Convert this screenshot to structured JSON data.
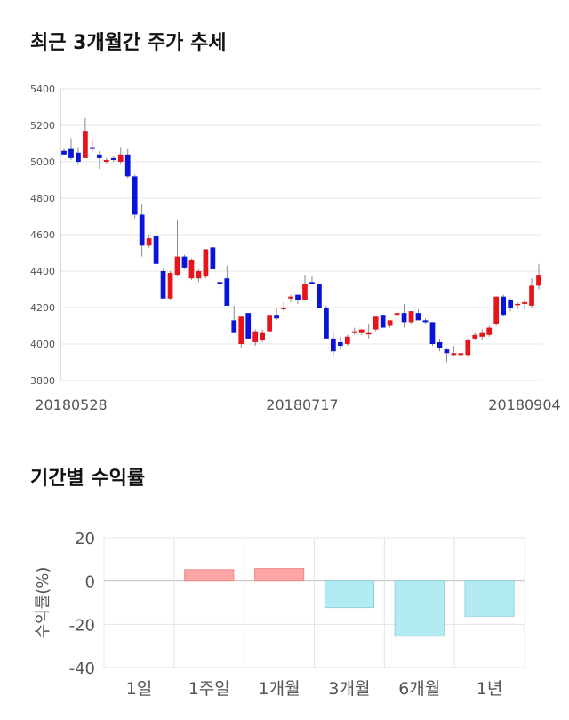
{
  "section1_title": "최근 3개월간 주가 추세",
  "section2_title": "기간별 수익률",
  "colors": {
    "up": "#e8141b",
    "down": "#0a14d8",
    "wick": "#888888",
    "grid": "#e4e4e4",
    "bar_positive": "#fca5a5",
    "bar_negative": "#b2ebf2",
    "bar_negative_stroke": "#8fd3e0"
  },
  "chart_data": [
    {
      "type": "candlestick",
      "ylim": [
        3800,
        5400
      ],
      "yticks": [
        "5400",
        "5200",
        "5000",
        "4800",
        "4600",
        "4400",
        "4200",
        "4000",
        "3800"
      ],
      "date_labels": [
        "20180528",
        "20180717",
        "20180904"
      ],
      "grid": true,
      "candles": [
        [
          5060,
          5070,
          5040,
          5040
        ],
        [
          5070,
          5130,
          5010,
          5020
        ],
        [
          5050,
          5080,
          4990,
          5000
        ],
        [
          5020,
          5240,
          5020,
          5170
        ],
        [
          5080,
          5120,
          5060,
          5070
        ],
        [
          5040,
          5060,
          4960,
          5020
        ],
        [
          5000,
          5020,
          4990,
          5010
        ],
        [
          5020,
          5030,
          5000,
          5010
        ],
        [
          5000,
          5080,
          4990,
          5040
        ],
        [
          5040,
          5070,
          4910,
          4920
        ],
        [
          4920,
          4930,
          4690,
          4710
        ],
        [
          4710,
          4770,
          4480,
          4540
        ],
        [
          4540,
          4600,
          4530,
          4580
        ],
        [
          4590,
          4650,
          4420,
          4440
        ],
        [
          4400,
          4410,
          4250,
          4250
        ],
        [
          4250,
          4400,
          4240,
          4390
        ],
        [
          4380,
          4680,
          4370,
          4480
        ],
        [
          4480,
          4490,
          4410,
          4420
        ],
        [
          4360,
          4470,
          4350,
          4460
        ],
        [
          4360,
          4410,
          4340,
          4400
        ],
        [
          4370,
          4520,
          4360,
          4520
        ],
        [
          4530,
          4530,
          4410,
          4410
        ],
        [
          4340,
          4360,
          4300,
          4330
        ],
        [
          4360,
          4430,
          4210,
          4210
        ],
        [
          4130,
          4210,
          4060,
          4060
        ],
        [
          4000,
          4150,
          3980,
          4150
        ],
        [
          4170,
          4170,
          4030,
          4030
        ],
        [
          4010,
          4080,
          3990,
          4070
        ],
        [
          4020,
          4080,
          4010,
          4060
        ],
        [
          4070,
          4160,
          4070,
          4160
        ],
        [
          4160,
          4200,
          4130,
          4140
        ],
        [
          4190,
          4230,
          4180,
          4200
        ],
        [
          4250,
          4270,
          4230,
          4260
        ],
        [
          4270,
          4270,
          4220,
          4240
        ],
        [
          4240,
          4380,
          4240,
          4330
        ],
        [
          4340,
          4370,
          4330,
          4330
        ],
        [
          4330,
          4330,
          4200,
          4200
        ],
        [
          4200,
          4210,
          4030,
          4030
        ],
        [
          4030,
          4060,
          3930,
          3960
        ],
        [
          4010,
          4040,
          3970,
          3990
        ],
        [
          4000,
          4050,
          3990,
          4040
        ],
        [
          4060,
          4090,
          4050,
          4070
        ],
        [
          4060,
          4080,
          4050,
          4080
        ],
        [
          4060,
          4110,
          4030,
          4060
        ],
        [
          4080,
          4150,
          4070,
          4150
        ],
        [
          4160,
          4160,
          4090,
          4090
        ],
        [
          4100,
          4130,
          4090,
          4130
        ],
        [
          4160,
          4180,
          4140,
          4170
        ],
        [
          4170,
          4220,
          4090,
          4120
        ],
        [
          4120,
          4180,
          4110,
          4180
        ],
        [
          4170,
          4190,
          4130,
          4130
        ],
        [
          4130,
          4140,
          4110,
          4120
        ],
        [
          4120,
          4120,
          3990,
          4000
        ],
        [
          4010,
          4030,
          3960,
          3980
        ],
        [
          3970,
          3980,
          3900,
          3950
        ],
        [
          3940,
          3990,
          3930,
          3950
        ],
        [
          3940,
          3950,
          3930,
          3950
        ],
        [
          3940,
          4030,
          3930,
          4020
        ],
        [
          4030,
          4060,
          4020,
          4050
        ],
        [
          4040,
          4080,
          4020,
          4060
        ],
        [
          4050,
          4100,
          4040,
          4090
        ],
        [
          4110,
          4260,
          4100,
          4260
        ],
        [
          4260,
          4270,
          4150,
          4160
        ],
        [
          4240,
          4250,
          4180,
          4200
        ],
        [
          4220,
          4230,
          4190,
          4220
        ],
        [
          4220,
          4240,
          4190,
          4230
        ],
        [
          4210,
          4360,
          4200,
          4320
        ],
        [
          4320,
          4440,
          4300,
          4380
        ]
      ]
    },
    {
      "type": "bar",
      "ylabel": "수익률(%)",
      "ylim": [
        -40,
        20
      ],
      "yticks": [
        "20",
        "0",
        "-20",
        "-40"
      ],
      "categories": [
        "1일",
        "1주일",
        "1개월",
        "3개월",
        "6개월",
        "1년"
      ],
      "values": [
        0,
        5.3,
        5.8,
        -12.3,
        -25.5,
        -16.3
      ],
      "grid": true
    }
  ]
}
